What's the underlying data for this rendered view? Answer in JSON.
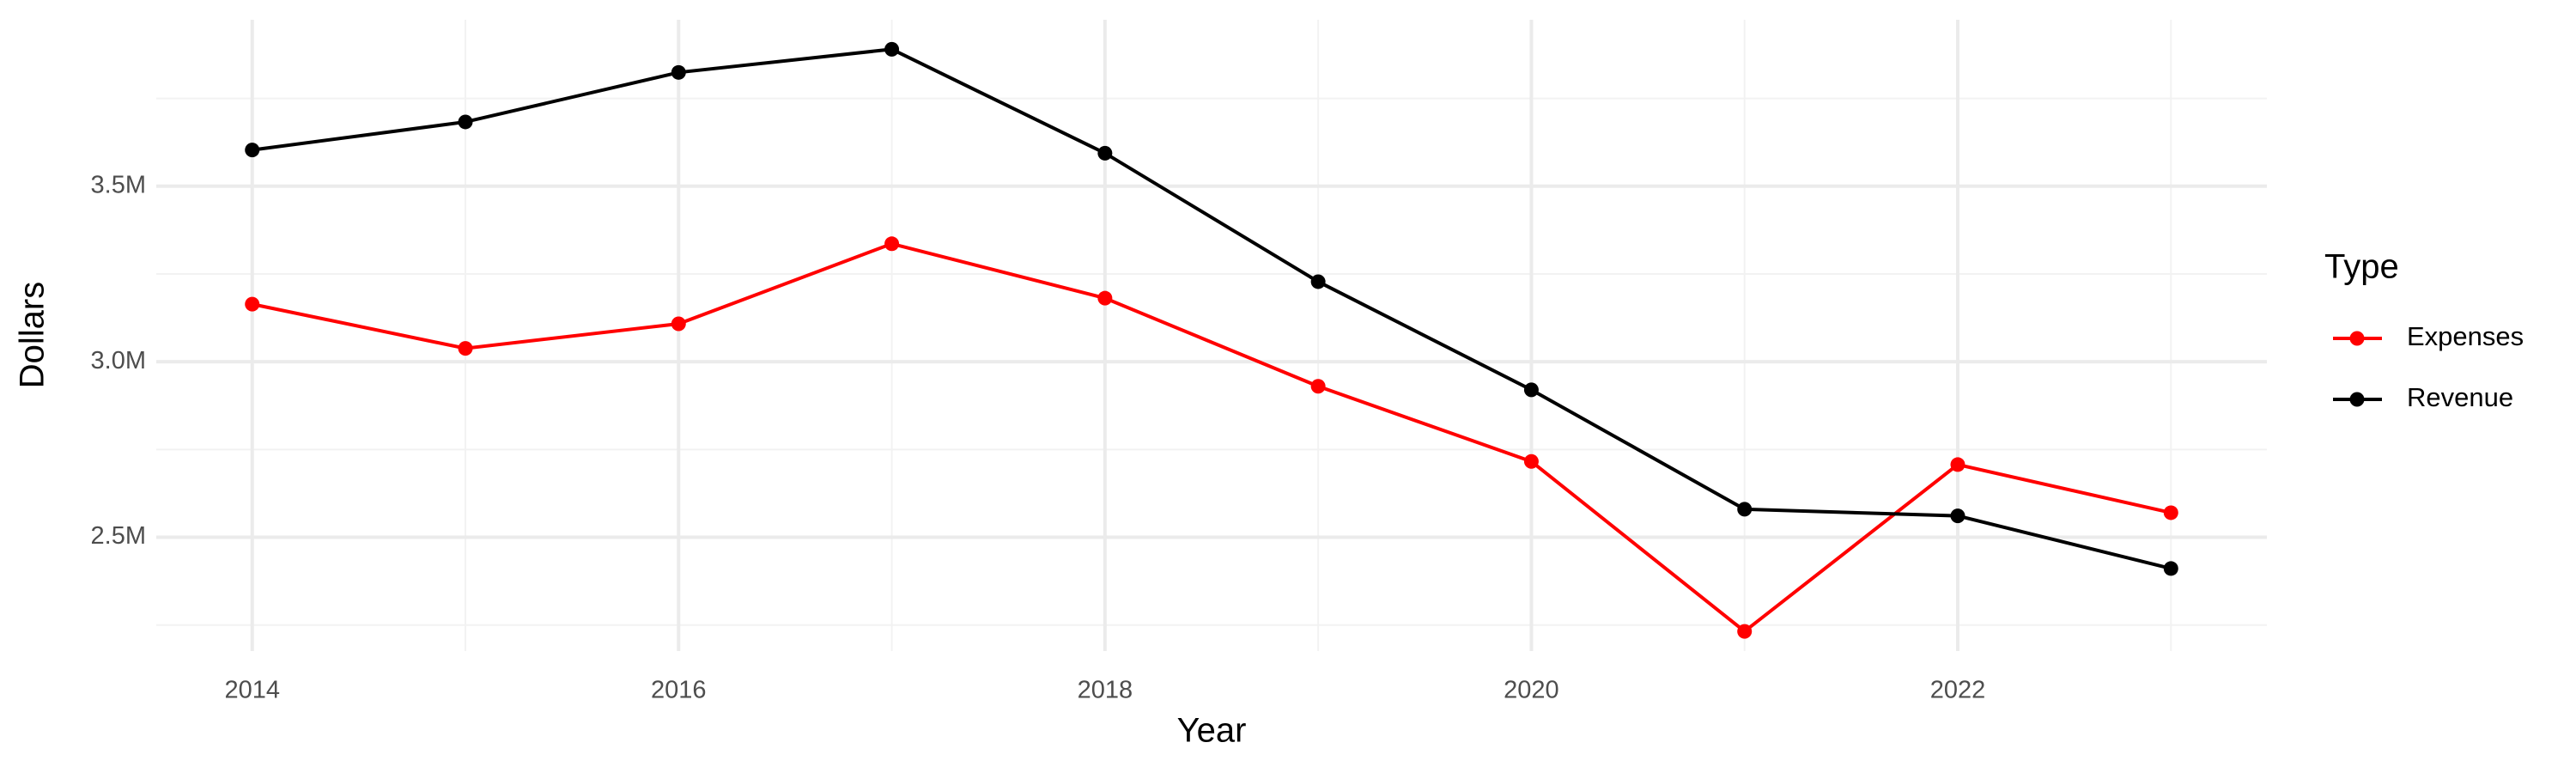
{
  "chart_data": {
    "type": "line",
    "x_label": "Year",
    "y_label": "Dollars",
    "legend_title": "Type",
    "x": [
      2014,
      2015,
      2016,
      2017,
      2018,
      2019,
      2020,
      2021,
      2022,
      2023
    ],
    "series": [
      {
        "name": "Expenses",
        "color": "#ff0000",
        "values": [
          3164000,
          3038000,
          3108000,
          3336000,
          3181000,
          2930000,
          2716000,
          2232000,
          2707000,
          2570000
        ]
      },
      {
        "name": "Revenue",
        "color": "#000000",
        "values": [
          3603000,
          3683000,
          3824000,
          3890000,
          3594000,
          3228000,
          2920000,
          2580000,
          2561000,
          2411000
        ]
      }
    ],
    "xlim": [
      2013.55,
      2023.45
    ],
    "xticks": [
      2014,
      2016,
      2018,
      2020,
      2022
    ],
    "x_minor_gridlines": [
      2015,
      2017,
      2019,
      2021,
      2023
    ],
    "ylim": [
      2176000,
      3974000
    ],
    "yticks": [
      {
        "value": 2500000,
        "label": "2.5M"
      },
      {
        "value": 3000000,
        "label": "3.0M"
      },
      {
        "value": 3500000,
        "label": "3.5M"
      }
    ],
    "y_minor_gridlines": [
      2250000,
      2750000,
      3250000,
      3750000
    ],
    "grid": true,
    "legend_position": "right"
  }
}
